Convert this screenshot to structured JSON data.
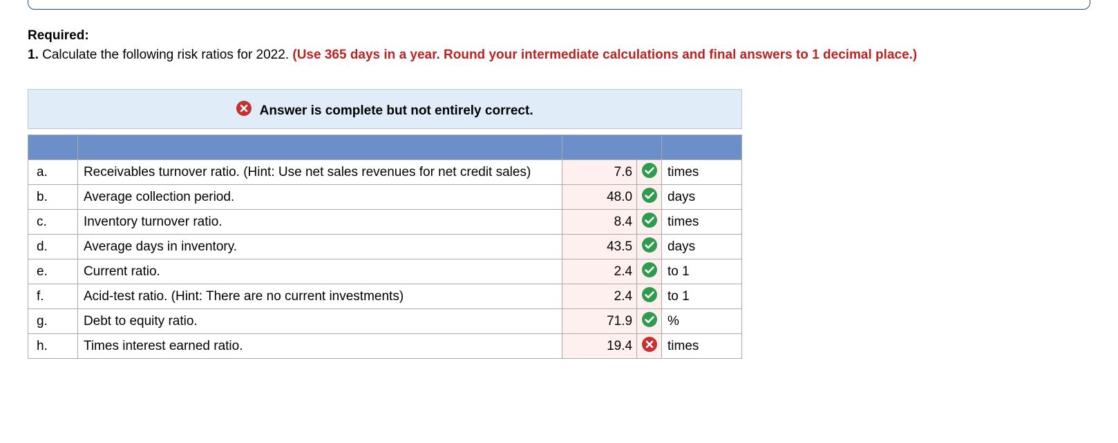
{
  "prompt": {
    "required_label": "Required:",
    "q_number": "1.",
    "q_text": " Calculate the following risk ratios for 2022. ",
    "q_note": "(Use 365 days in a year. Round your intermediate calculations and final answers to 1 decimal place.)"
  },
  "status_bar": {
    "icon": "cross",
    "text": "Answer is complete but not entirely correct."
  },
  "colors": {
    "status_bg": "#e0ecf8",
    "header_bg": "#6b8fc9",
    "input_bg": "#fef0ee",
    "correct": "#2e9b4f",
    "incorrect": "#c53030",
    "note_red": "#bb2222"
  },
  "rows": [
    {
      "letter": "a.",
      "desc": "Receivables turnover ratio. (Hint: Use net sales revenues for net credit sales)",
      "value": "7.6",
      "correct": true,
      "unit": "times"
    },
    {
      "letter": "b.",
      "desc": "Average collection period.",
      "value": "48.0",
      "correct": true,
      "unit": "days"
    },
    {
      "letter": "c.",
      "desc": "Inventory turnover ratio.",
      "value": "8.4",
      "correct": true,
      "unit": "times"
    },
    {
      "letter": "d.",
      "desc": "Average days in inventory.",
      "value": "43.5",
      "correct": true,
      "unit": "days"
    },
    {
      "letter": "e.",
      "desc": "Current ratio.",
      "value": "2.4",
      "correct": true,
      "unit": "to 1"
    },
    {
      "letter": "f.",
      "desc": "Acid-test ratio. (Hint: There are no current investments)",
      "value": "2.4",
      "correct": true,
      "unit": "to 1"
    },
    {
      "letter": "g.",
      "desc": "Debt to equity ratio.",
      "value": "71.9",
      "correct": true,
      "unit": "%"
    },
    {
      "letter": "h.",
      "desc": "Times interest earned ratio.",
      "value": "19.4",
      "correct": false,
      "unit": "times"
    }
  ]
}
